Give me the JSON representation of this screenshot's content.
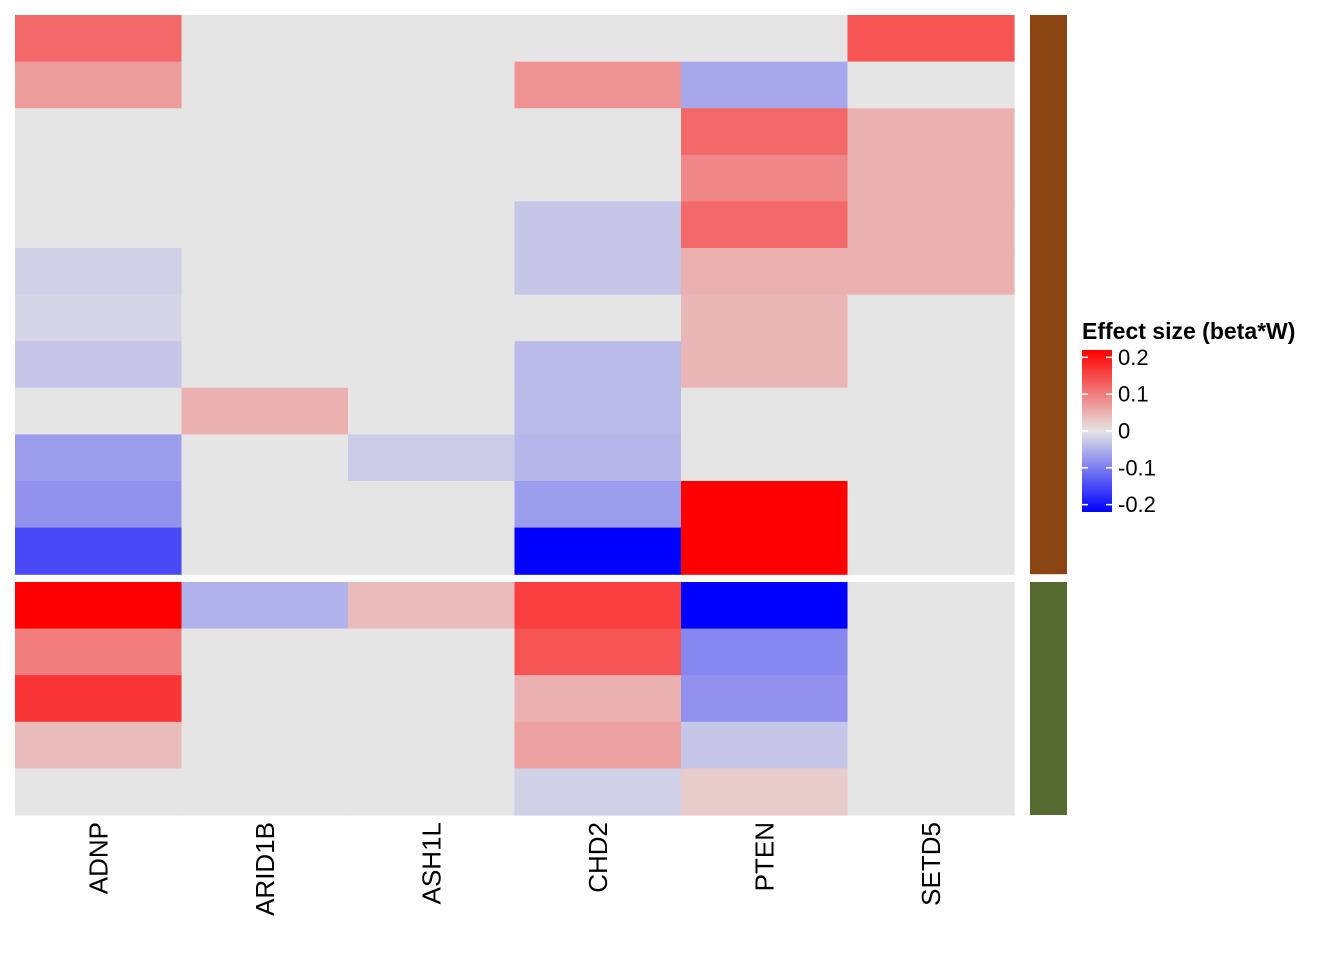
{
  "chart_data": {
    "type": "heatmap",
    "title": "",
    "xlabel": "",
    "ylabel": "",
    "columns": [
      "ADNP",
      "ARID1B",
      "ASH1L",
      "CHD2",
      "PTEN",
      "SETD5"
    ],
    "row_groups": [
      {
        "annotation_color": "#8B4513",
        "rows": [
          [
            0.12,
            0,
            0,
            0,
            0,
            0.14
          ],
          [
            0.07,
            0,
            0,
            0.08,
            -0.06,
            0
          ],
          [
            0,
            0,
            0,
            0,
            0.12,
            0.05
          ],
          [
            0,
            0,
            0,
            0,
            0.09,
            0.05
          ],
          [
            0,
            0,
            0,
            -0.03,
            0.12,
            0.05
          ],
          [
            -0.02,
            0,
            0,
            -0.03,
            0.05,
            0.05
          ],
          [
            -0.015,
            0,
            0,
            0,
            0.045,
            0
          ],
          [
            -0.03,
            0,
            0,
            -0.04,
            0.045,
            0
          ],
          [
            0,
            0.05,
            0,
            -0.04,
            0,
            0
          ],
          [
            -0.07,
            0,
            -0.025,
            -0.045,
            0,
            0
          ],
          [
            -0.08,
            0,
            0,
            -0.07,
            0.22,
            0
          ],
          [
            -0.15,
            0,
            0,
            -0.22,
            0.22,
            0
          ]
        ]
      },
      {
        "annotation_color": "#556B2F",
        "rows": [
          [
            0.22,
            -0.05,
            0.04,
            0.16,
            -0.22,
            0
          ],
          [
            0.1,
            0,
            0,
            0.14,
            -0.09,
            0
          ],
          [
            0.17,
            0,
            0,
            0.05,
            -0.08,
            0
          ],
          [
            0.04,
            0,
            0,
            0.065,
            -0.03,
            0
          ],
          [
            0,
            0,
            0,
            -0.02,
            0.025,
            0
          ]
        ]
      }
    ],
    "color_scale": {
      "min": -0.22,
      "max": 0.22,
      "low": "#0000FF",
      "mid": "#E5E5E5",
      "high": "#FF0000"
    },
    "legend": {
      "title": "Effect size (beta*W)",
      "ticks": [
        0.2,
        0.1,
        0,
        -0.1,
        -0.2
      ],
      "tick_labels": [
        "0.2",
        "0.1",
        "0",
        "-0.1",
        "-0.2"
      ],
      "placement": "right"
    }
  }
}
